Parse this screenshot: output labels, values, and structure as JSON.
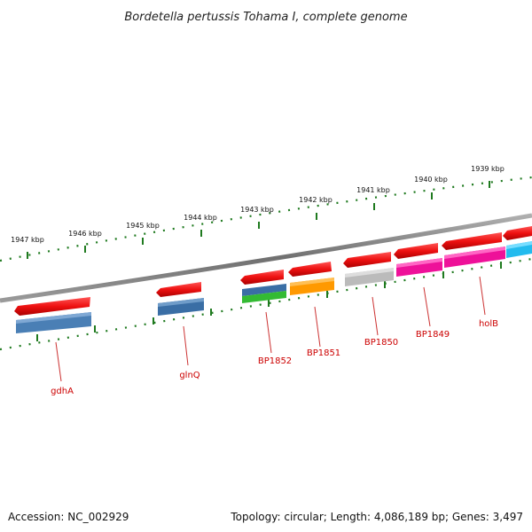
{
  "title": "Bordetella pertussis Tohama I, complete genome",
  "footer": {
    "accession": "Accession: NC_002929",
    "summary": "Topology: circular; Length: 4,086,189 bp; Genes: 3,497"
  },
  "scale": {
    "ticks": [
      "1947 kbp",
      "1946 kbp",
      "1945 kbp",
      "1944 kbp",
      "1943 kbp",
      "1942 kbp",
      "1941 kbp",
      "1940 kbp",
      "1939 kbp"
    ]
  },
  "colors": {
    "backbone": "#7a7a7a",
    "tick_dots": "#1f7a1f",
    "cds_arrow": "#ee1111",
    "label": "#cc0000",
    "leader": "#cc3333"
  },
  "genes": [
    {
      "label": "gdhA",
      "category_color": "#4a7fb5"
    },
    {
      "label": "glnQ",
      "category_color": "#3a6ea5"
    },
    {
      "label": "BP1852",
      "category_color": "#3a6ea5",
      "second_color": "#33bb33"
    },
    {
      "label": "BP1851",
      "category_color": "#ff9900"
    },
    {
      "label": "BP1850",
      "category_color": "#bbbbbb"
    },
    {
      "label": "BP1849",
      "category_color": "#ee1199"
    },
    {
      "label": "holB",
      "category_color": "#ee1199"
    },
    {
      "label": "",
      "category_color": "#22bbee"
    }
  ]
}
